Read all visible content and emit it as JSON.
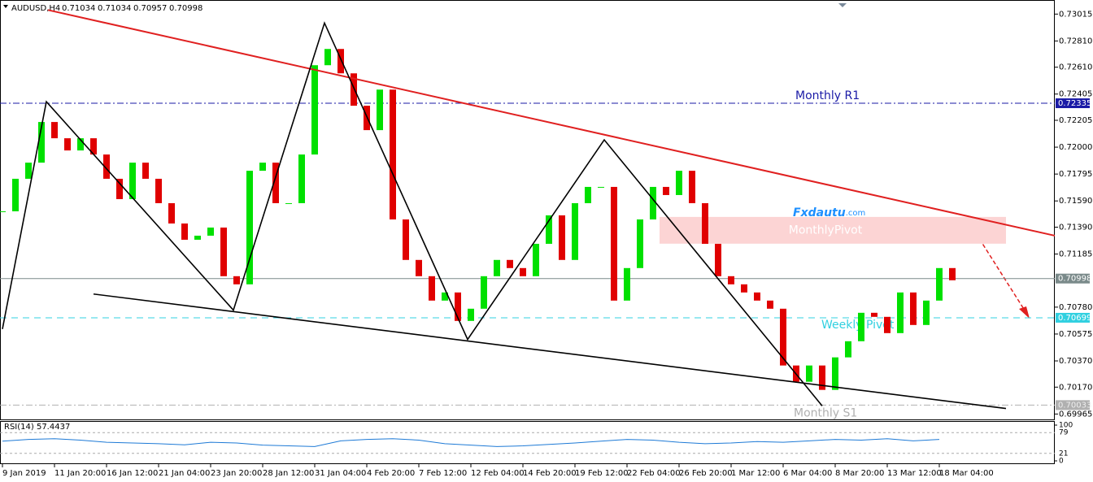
{
  "chart_data": {
    "type": "candlestick",
    "symbol": "AUDUSD,H4",
    "quote": [
      0.71034,
      0.71034,
      0.70957,
      0.70998
    ],
    "xlim": [
      -0.75,
      323.5
    ],
    "ylim": [
      0.6993,
      0.7311
    ],
    "xticks": [
      {
        "value": 0,
        "label": "9 Jan 2019"
      },
      {
        "value": 16,
        "label": "11 Jan 20:00"
      },
      {
        "value": 32,
        "label": "16 Jan 12:00"
      },
      {
        "value": 48,
        "label": "21 Jan 04:00"
      },
      {
        "value": 64,
        "label": "23 Jan 20:00"
      },
      {
        "value": 80,
        "label": "28 Jan 12:00"
      },
      {
        "value": 96,
        "label": "31 Jan 04:00"
      },
      {
        "value": 112,
        "label": "4 Feb 20:00"
      },
      {
        "value": 128,
        "label": "7 Feb 12:00"
      },
      {
        "value": 144,
        "label": "12 Feb 04:00"
      },
      {
        "value": 160,
        "label": "14 Feb 20:00"
      },
      {
        "value": 176,
        "label": "19 Feb 12:00"
      },
      {
        "value": 192,
        "label": "22 Feb 04:00"
      },
      {
        "value": 208,
        "label": "26 Feb 20:00"
      },
      {
        "value": 224,
        "label": "1 Mar 12:00"
      },
      {
        "value": 240,
        "label": "6 Mar 04:00"
      },
      {
        "value": 256,
        "label": "8 Mar 20:00"
      },
      {
        "value": 272,
        "label": "13 Mar 12:00"
      },
      {
        "value": 288,
        "label": "18 Mar 04:00"
      }
    ],
    "yticks": [
      {
        "value": 0.73015,
        "label": "0.73015"
      },
      {
        "value": 0.7281,
        "label": "0.72810"
      },
      {
        "value": 0.7261,
        "label": "0.72610"
      },
      {
        "value": 0.72405,
        "label": "0.72405"
      },
      {
        "value": 0.72205,
        "label": "0.72205"
      },
      {
        "value": 0.72,
        "label": "0.72000"
      },
      {
        "value": 0.71795,
        "label": "0.71795"
      },
      {
        "value": 0.7159,
        "label": "0.71590"
      },
      {
        "value": 0.7139,
        "label": "0.71390"
      },
      {
        "value": 0.71185,
        "label": "0.71185"
      },
      {
        "value": 0.7078,
        "label": "0.70780"
      },
      {
        "value": 0.70575,
        "label": "0.70575"
      },
      {
        "value": 0.7037,
        "label": "0.70370"
      },
      {
        "value": 0.7017,
        "label": "0.70170"
      },
      {
        "value": 0.69965,
        "label": "0.69965"
      }
    ],
    "x": [
      0,
      4,
      8,
      12,
      16,
      20,
      24,
      28,
      32,
      36,
      40,
      44,
      48,
      52,
      56,
      60,
      64,
      68,
      72,
      76,
      80,
      84,
      88,
      92,
      96,
      100,
      104,
      108,
      112,
      116,
      120,
      124,
      128,
      132,
      136,
      140,
      144,
      148,
      152,
      156,
      160,
      164,
      168,
      172,
      176,
      180,
      184,
      188,
      192,
      196,
      200,
      204,
      208,
      212,
      216,
      220,
      224,
      228,
      232,
      236,
      240,
      244,
      248,
      252,
      256,
      260,
      264,
      268,
      272,
      276,
      280,
      284,
      288,
      292
    ],
    "close": [
      0.71511,
      0.71759,
      0.71882,
      0.72192,
      0.72068,
      0.71975,
      0.72068,
      0.71944,
      0.71759,
      0.71604,
      0.71882,
      0.71759,
      0.71573,
      0.71418,
      0.71294,
      0.71325,
      0.71387,
      0.71016,
      0.70954,
      0.7182,
      0.71882,
      0.71573,
      0.71573,
      0.71944,
      0.72625,
      0.72749,
      0.72563,
      0.72316,
      0.7213,
      0.72439,
      0.71449,
      0.7114,
      0.71016,
      0.7083,
      0.70892,
      0.70675,
      0.70768,
      0.71016,
      0.7114,
      0.71078,
      0.71016,
      0.71263,
      0.7148,
      0.7114,
      0.71573,
      0.71697,
      0.71697,
      0.7083,
      0.71078,
      0.71449,
      0.71697,
      0.71635,
      0.7182,
      0.71573,
      0.71263,
      0.71016,
      0.70954,
      0.70892,
      0.7083,
      0.70768,
      0.70335,
      0.70211,
      0.70335,
      0.70149,
      0.70397,
      0.7052,
      0.70737,
      0.70706,
      0.70582,
      0.70892,
      0.70644,
      0.7083,
      0.71078,
      0.70985
    ],
    "up_color": "#00e000",
    "down_color": "#e00000",
    "trendlines": [
      {
        "color": "#e02020",
        "x": [
          14,
          323.5
        ],
        "y": [
          0.73046,
          0.71325
        ]
      },
      {
        "color": "#000000",
        "x": [
          28,
          308.5
        ],
        "y": [
          0.7088,
          0.70007
        ]
      },
      {
        "color": "#000000",
        "x": [
          0,
          13.5,
          71,
          99,
          143,
          185,
          252
        ],
        "y": [
          0.70613,
          0.72347,
          0.70757,
          0.72947,
          0.70534,
          0.72056,
          0.70027
        ]
      }
    ],
    "levels": [
      {
        "label": "Monthly R1",
        "value": 0.72335,
        "color": "#1a1aa6",
        "dash": "8 3 2 3"
      },
      {
        "value": 0.70998,
        "color": "#7a8a8a",
        "dash": ""
      },
      {
        "label": "Weekly Pivot",
        "value": 0.70699,
        "color": "#30d0e0",
        "dash": "8 6"
      },
      {
        "label": "Monthly S1",
        "value": 0.70033,
        "color": "#b0b0b0",
        "dash": "8 3 2 3"
      }
    ],
    "zone": {
      "label": "MonthlyPivot",
      "x": [
        202,
        308.5
      ],
      "y": [
        0.71468,
        0.71264
      ],
      "color": "#fcd4d4"
    },
    "watermark": [
      "Fxdautu",
      ".com"
    ],
    "rsi": {
      "label": "RSI(14) 57.4437",
      "ylim": [
        0,
        100
      ],
      "yticks": [
        100,
        79,
        21,
        0
      ],
      "color": "#1e7ad6",
      "x": [
        0,
        8,
        16,
        24,
        32,
        40,
        48,
        56,
        64,
        72,
        80,
        88,
        96,
        104,
        112,
        120,
        128,
        136,
        144,
        152,
        160,
        168,
        176,
        184,
        192,
        200,
        208,
        216,
        224,
        232,
        240,
        248,
        256,
        264,
        272,
        280,
        288
      ],
      "values": [
        55,
        60,
        62,
        58,
        52,
        50,
        48,
        45,
        52,
        50,
        44,
        42,
        40,
        56,
        60,
        62,
        58,
        48,
        44,
        40,
        42,
        46,
        50,
        55,
        60,
        58,
        52,
        48,
        50,
        54,
        52,
        56,
        60,
        58,
        62,
        56,
        60
      ]
    }
  }
}
